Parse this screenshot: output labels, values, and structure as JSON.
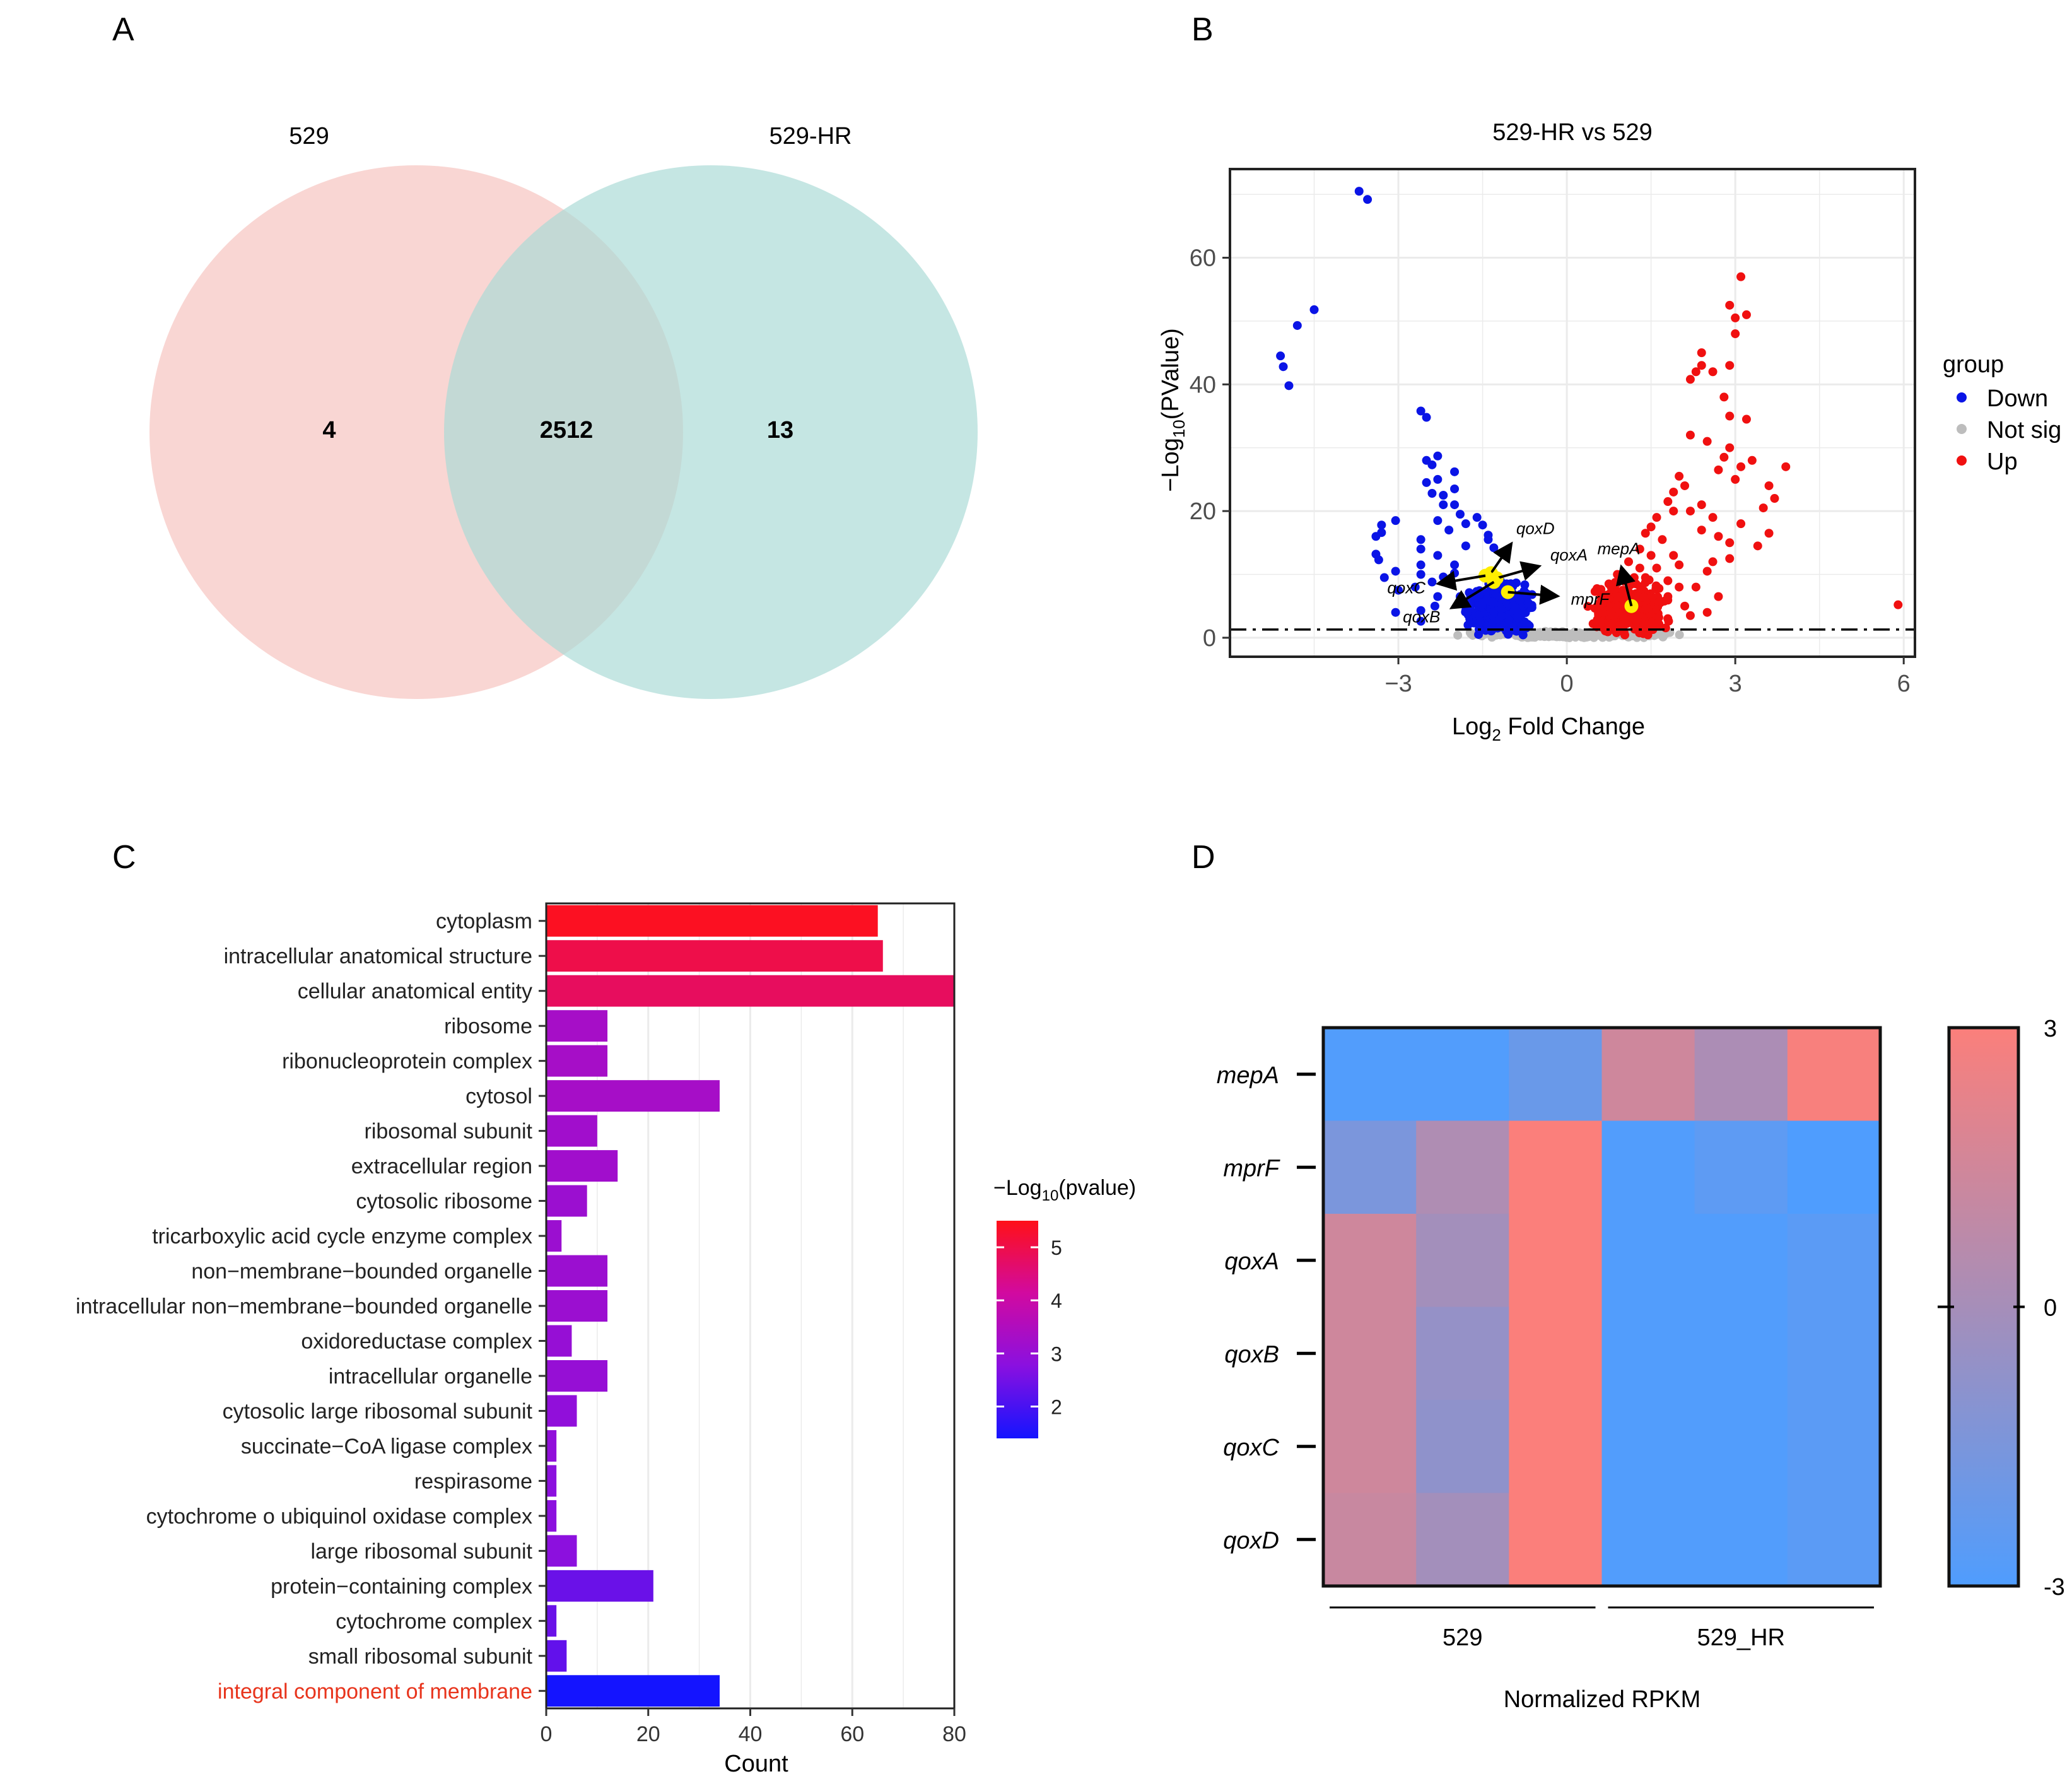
{
  "panels": {
    "A": "A",
    "B": "B",
    "C": "C",
    "D": "D"
  },
  "chart_data": [
    {
      "type": "venn",
      "sets": [
        {
          "name": "529",
          "color": "#f8cfcb",
          "unique": 4
        },
        {
          "name": "529-HR",
          "color": "#a9dad6",
          "unique": 13
        }
      ],
      "intersection": 2512
    },
    {
      "type": "scatter",
      "title": "529-HR vs 529",
      "xlabel": "Log",
      "xlabel_sub": "2",
      "xlabel_rest": " Fold Change",
      "ylabel": "−Log",
      "ylabel_sub": "10",
      "ylabel_rest": "(PValue)",
      "xlim": [
        -6.0,
        6.2
      ],
      "ylim": [
        -3,
        74
      ],
      "xticks": [
        -3,
        0,
        3,
        6
      ],
      "xtick_labels": [
        "−3",
        "0",
        "3",
        "6"
      ],
      "yticks": [
        0,
        20,
        40,
        60
      ],
      "threshold_y": 1.3,
      "legend": {
        "title": "group",
        "entries": [
          {
            "label": "Down",
            "color": "#0a14e6"
          },
          {
            "label": "Not sig",
            "color": "#bdbdbd"
          },
          {
            "label": "Up",
            "color": "#f01010"
          }
        ]
      },
      "down_points": [
        [
          -3.7,
          70.5
        ],
        [
          -3.55,
          69.2
        ],
        [
          -4.5,
          51.8
        ],
        [
          -4.8,
          49.3
        ],
        [
          -5.1,
          44.5
        ],
        [
          -5.05,
          42.8
        ],
        [
          -4.95,
          39.8
        ],
        [
          -3.3,
          17.8
        ],
        [
          -3.3,
          16.6
        ],
        [
          -3.4,
          16.0
        ],
        [
          -3.4,
          13.2
        ],
        [
          -3.35,
          12.3
        ],
        [
          -3.25,
          9.5
        ],
        [
          -3.05,
          18.5
        ],
        [
          -3.05,
          10.5
        ],
        [
          -3.05,
          4.0
        ],
        [
          -3.0,
          7.5
        ],
        [
          -2.6,
          35.8
        ],
        [
          -2.5,
          34.8
        ],
        [
          -2.5,
          28.0
        ],
        [
          -2.3,
          28.7
        ],
        [
          -2.4,
          27.3
        ],
        [
          -2.3,
          25.0
        ],
        [
          -2.5,
          24.5
        ],
        [
          -2.4,
          22.8
        ],
        [
          -2.2,
          22.5
        ],
        [
          -2.0,
          26.2
        ],
        [
          -2.0,
          23.5
        ],
        [
          -2.2,
          21.0
        ],
        [
          -2.0,
          21.0
        ],
        [
          -2.3,
          18.5
        ],
        [
          -1.9,
          19.5
        ],
        [
          -2.1,
          17.0
        ],
        [
          -1.8,
          18.0
        ],
        [
          -1.6,
          19.0
        ],
        [
          -1.5,
          17.8
        ],
        [
          -1.4,
          16.2
        ],
        [
          -2.6,
          15.5
        ],
        [
          -2.6,
          14.0
        ],
        [
          -2.3,
          13.0
        ],
        [
          -1.8,
          14.5
        ],
        [
          -1.4,
          15.5
        ],
        [
          -1.3,
          14.2
        ],
        [
          -2.6,
          11.5
        ],
        [
          -2.6,
          10.0
        ],
        [
          -2.4,
          8.8
        ],
        [
          -2.2,
          9.6
        ],
        [
          -2.0,
          11.5
        ],
        [
          -2.0,
          10.2
        ],
        [
          -2.3,
          6.5
        ],
        [
          -2.35,
          5.0
        ],
        [
          -2.6,
          4.3
        ],
        [
          -2.6,
          2.6
        ],
        [
          -1.9,
          6.5
        ],
        [
          -2.7,
          8.0
        ]
      ],
      "up_points": [
        [
          3.1,
          57.0
        ],
        [
          3.2,
          51.0
        ],
        [
          2.9,
          52.5
        ],
        [
          3.0,
          50.5
        ],
        [
          3.0,
          48.0
        ],
        [
          2.4,
          45.0
        ],
        [
          2.4,
          43.0
        ],
        [
          2.6,
          42.0
        ],
        [
          2.9,
          43.0
        ],
        [
          2.3,
          42.0
        ],
        [
          2.2,
          40.8
        ],
        [
          2.8,
          38.0
        ],
        [
          3.2,
          34.5
        ],
        [
          2.9,
          35.0
        ],
        [
          2.5,
          31.0
        ],
        [
          2.2,
          32.0
        ],
        [
          2.9,
          30.0
        ],
        [
          2.8,
          28.5
        ],
        [
          3.3,
          28.0
        ],
        [
          3.1,
          27.0
        ],
        [
          2.7,
          26.5
        ],
        [
          3.9,
          27.0
        ],
        [
          3.0,
          25.0
        ],
        [
          3.6,
          24.0
        ],
        [
          3.7,
          22.0
        ],
        [
          2.1,
          24.0
        ],
        [
          2.0,
          25.5
        ],
        [
          1.9,
          23.0
        ],
        [
          1.8,
          21.5
        ],
        [
          1.9,
          20.0
        ],
        [
          2.2,
          20.0
        ],
        [
          2.4,
          21.0
        ],
        [
          2.6,
          19.0
        ],
        [
          2.4,
          17.0
        ],
        [
          2.7,
          16.0
        ],
        [
          3.1,
          18.0
        ],
        [
          2.9,
          15.0
        ],
        [
          2.6,
          12.0
        ],
        [
          2.9,
          12.5
        ],
        [
          2.5,
          10.5
        ],
        [
          2.3,
          8.0
        ],
        [
          2.7,
          6.5
        ],
        [
          2.5,
          4.0
        ],
        [
          2.1,
          5.0
        ],
        [
          2.2,
          3.5
        ],
        [
          3.4,
          14.5
        ],
        [
          3.5,
          20.5
        ],
        [
          3.6,
          16.5
        ],
        [
          1.6,
          19.0
        ],
        [
          1.5,
          17.5
        ],
        [
          1.7,
          15.5
        ],
        [
          1.4,
          16.5
        ],
        [
          1.3,
          14.0
        ],
        [
          1.5,
          13.0
        ],
        [
          1.6,
          11.0
        ],
        [
          1.3,
          11.0
        ],
        [
          1.4,
          9.5
        ],
        [
          1.8,
          9.0
        ],
        [
          1.9,
          13.0
        ],
        [
          2.0,
          11.5
        ],
        [
          1.8,
          6.5
        ],
        [
          2.0,
          8.0
        ],
        [
          1.1,
          12.0
        ],
        [
          1.2,
          9.5
        ],
        [
          1.0,
          7.5
        ],
        [
          0.9,
          10.0
        ],
        [
          1.6,
          4.5
        ],
        [
          5.9,
          5.2
        ]
      ],
      "down_cluster": {
        "center": [
          -1.2,
          4.5
        ],
        "spread": [
          0.5,
          3.6
        ],
        "count": 330
      },
      "up_cluster": {
        "center": [
          1.1,
          4.5
        ],
        "spread": [
          0.5,
          3.6
        ],
        "count": 330
      },
      "ns_cluster": {
        "center": [
          0.0,
          0.5
        ],
        "spread": [
          1.3,
          0.45
        ],
        "count": 260
      },
      "highlight_genes": [
        {
          "label": "qoxD",
          "x": -1.35,
          "y": 10.2
        },
        {
          "label": "qoxA",
          "x": -1.25,
          "y": 9.4
        },
        {
          "label": "qoxC",
          "x": -1.45,
          "y": 9.8
        },
        {
          "label": "qoxB",
          "x": -1.3,
          "y": 8.8
        },
        {
          "label": "mprF",
          "x": -1.05,
          "y": 7.2
        },
        {
          "label": "mepA",
          "x": 1.15,
          "y": 5.0
        }
      ]
    },
    {
      "type": "bar",
      "orientation": "horizontal",
      "xlabel": "Count",
      "xlim": [
        0,
        80
      ],
      "xticks": [
        0,
        20,
        40,
        60,
        80
      ],
      "legend_title": "−Log",
      "legend_title_sub": "10",
      "legend_title_rest": "(pvalue)",
      "color_range": [
        1.4,
        5.5
      ],
      "color_ticks": [
        2,
        3,
        4,
        5
      ],
      "categories": [
        "cytoplasm",
        "intracellular anatomical structure",
        "cellular anatomical entity",
        "ribosome",
        "ribonucleoprotein complex",
        "cytosol",
        "ribosomal subunit",
        "extracellular region",
        "cytosolic ribosome",
        "tricarboxylic acid cycle enzyme complex",
        "non−membrane−bounded organelle",
        "intracellular non−membrane−bounded organelle",
        "oxidoreductase complex",
        "intracellular organelle",
        "cytosolic large ribosomal subunit",
        "succinate−CoA ligase complex",
        "respirasome",
        "cytochrome o ubiquinol oxidase complex",
        "large ribosomal subunit",
        "protein−containing complex",
        "cytochrome complex",
        "small ribosomal subunit",
        "integral component of membrane"
      ],
      "values": [
        65,
        66,
        80,
        12,
        12,
        34,
        10,
        14,
        8,
        3,
        12,
        12,
        5,
        12,
        6,
        2,
        2,
        2,
        6,
        21,
        2,
        4,
        34
      ],
      "neg_log10_p": [
        5.4,
        5.0,
        4.8,
        3.3,
        3.3,
        3.3,
        3.2,
        3.2,
        3.1,
        3.1,
        3.1,
        3.1,
        3.0,
        3.0,
        2.9,
        2.9,
        2.8,
        2.8,
        2.8,
        2.4,
        2.4,
        2.3,
        1.4
      ],
      "highlight_category": "integral component of membrane",
      "highlight_color": "#e8341c"
    },
    {
      "type": "heatmap",
      "rows": [
        "mepA",
        "mprF",
        "qoxA",
        "qoxB",
        "qoxC",
        "qoxD"
      ],
      "groups": [
        {
          "label": "529",
          "columns": 3
        },
        {
          "label": "529_HR",
          "columns": 3
        }
      ],
      "values": [
        [
          -2.9,
          -2.9,
          -2.1,
          1.4,
          0.2,
          2.9
        ],
        [
          -1.5,
          0.3,
          3.0,
          -2.9,
          -2.5,
          -3.0
        ],
        [
          1.4,
          -0.1,
          3.0,
          -2.9,
          -2.9,
          -2.6
        ],
        [
          1.4,
          -0.6,
          3.0,
          -2.9,
          -2.9,
          -2.6
        ],
        [
          1.4,
          -0.8,
          3.0,
          -2.9,
          -2.9,
          -2.6
        ],
        [
          1.2,
          -0.1,
          3.0,
          -2.9,
          -2.9,
          -2.6
        ]
      ],
      "color_low": "#4f9dfe",
      "color_mid": "#a68eb9",
      "color_high": "#fb7f7b",
      "scale_range": [
        -3,
        3
      ],
      "scale_labels": [
        "3",
        "0",
        "-3"
      ],
      "xlabel": "Normalized RPKM"
    }
  ]
}
